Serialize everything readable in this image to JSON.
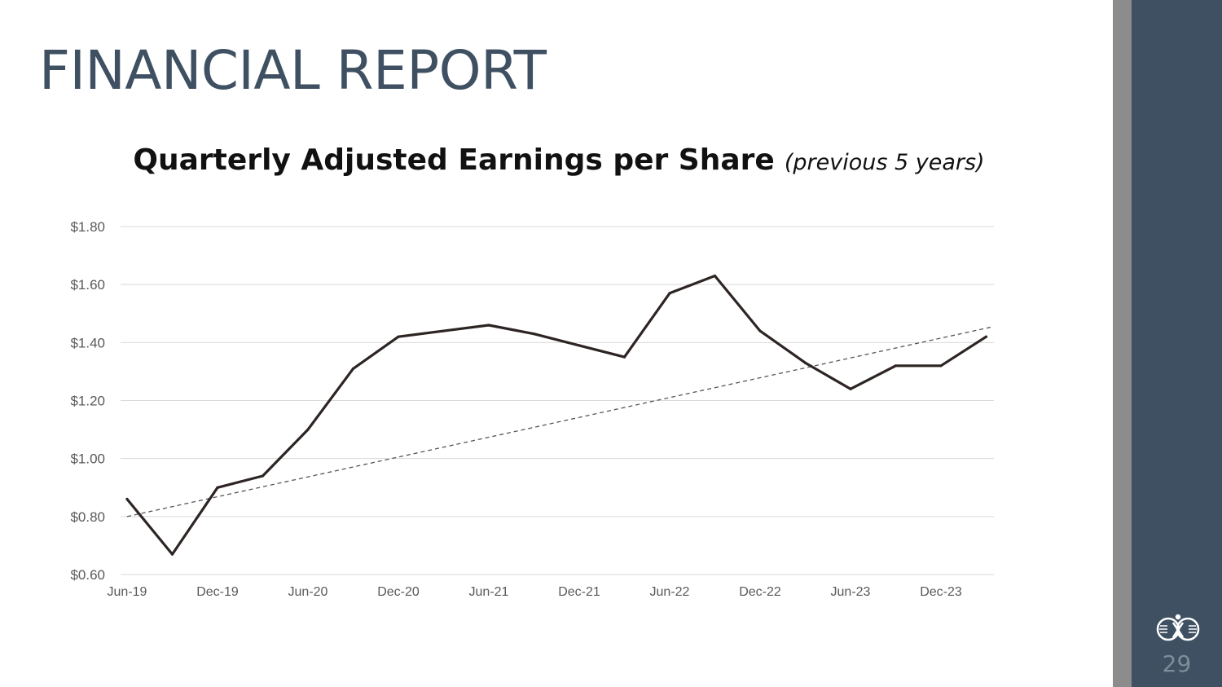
{
  "slide": {
    "title": "FINANCIAL REPORT",
    "page_number": "29",
    "logo_icon": "company-logo-icon"
  },
  "colors": {
    "title": "#3e5062",
    "panel": "#3e5062",
    "panel_strip": "#8c8c8c",
    "line": "#2d2523",
    "trend": "#555555",
    "grid": "#d9d9d9",
    "tick_text": "#595959"
  },
  "chart_data": {
    "type": "line",
    "title": "Quarterly Adjusted Earnings per Share",
    "subtitle": "(previous 5 years)",
    "xlabel": "",
    "ylabel": "",
    "x": [
      "Jun-19",
      "Sep-19",
      "Dec-19",
      "Mar-20",
      "Jun-20",
      "Sep-20",
      "Dec-20",
      "Mar-21",
      "Jun-21",
      "Sep-21",
      "Dec-21",
      "Mar-22",
      "Jun-22",
      "Sep-22",
      "Dec-22",
      "Mar-23",
      "Jun-23",
      "Sep-23",
      "Dec-23",
      "Mar-24"
    ],
    "x_tick_labels": [
      "Jun-19",
      "Dec-19",
      "Jun-20",
      "Dec-20",
      "Jun-21",
      "Dec-21",
      "Jun-22",
      "Dec-22",
      "Jun-23",
      "Dec-23"
    ],
    "series": [
      {
        "values": [
          0.86,
          0.67,
          0.9,
          0.94,
          1.1,
          1.31,
          1.42,
          1.44,
          1.46,
          1.43,
          1.39,
          1.35,
          1.57,
          1.63,
          1.44,
          1.33,
          1.24,
          1.32,
          1.32,
          1.42
        ]
      }
    ],
    "trendline": {
      "type": "linear",
      "style": "dashed",
      "start": 0.8,
      "end": 1.45
    },
    "y_ticks": [
      0.6,
      0.8,
      1.0,
      1.2,
      1.4,
      1.6,
      1.8
    ],
    "y_tick_labels": [
      "$0.60",
      "$0.80",
      "$1.00",
      "$1.20",
      "$1.40",
      "$1.60",
      "$1.80"
    ],
    "ylim": [
      0.6,
      1.8
    ],
    "grid": "horizontal",
    "legend": "none"
  }
}
